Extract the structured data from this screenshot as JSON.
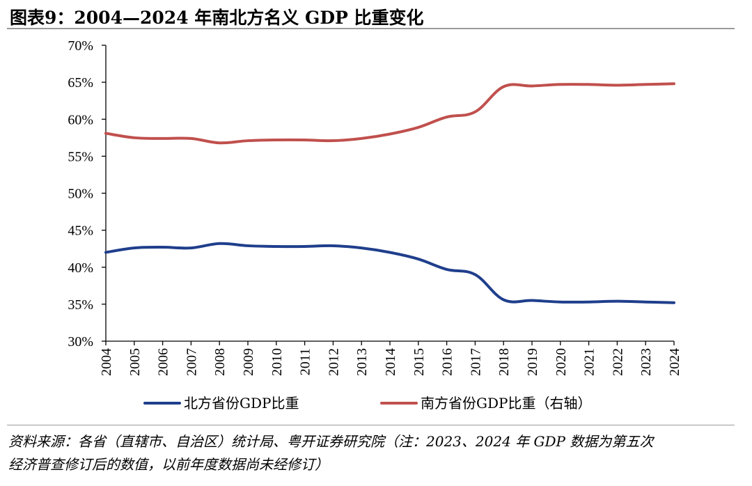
{
  "header": {
    "title": "图表9：2004—2024 年南北方名义 GDP 比重变化"
  },
  "footer": {
    "source_line1": "资料来源：各省（直辖市、自治区）统计局、粤开证券研究院（注：2023、2024 年 GDP 数据为第五次",
    "source_line2": "经济普查修订后的数值，以前年度数据尚未经修订）"
  },
  "chart_data": {
    "type": "line",
    "title": "2004—2024 年南北方名义 GDP 比重变化",
    "x": [
      "2004",
      "2005",
      "2006",
      "2007",
      "2008",
      "2009",
      "2010",
      "2011",
      "2012",
      "2013",
      "2014",
      "2015",
      "2016",
      "2017",
      "2018",
      "2019",
      "2020",
      "2021",
      "2022",
      "2023",
      "2024"
    ],
    "ylim": [
      30,
      70
    ],
    "yticks": [
      30,
      35,
      40,
      45,
      50,
      55,
      60,
      65,
      70
    ],
    "ytick_labels": [
      "30%",
      "35%",
      "40%",
      "45%",
      "50%",
      "55%",
      "60%",
      "65%",
      "70%"
    ],
    "series": [
      {
        "name": "北方省份GDP比重",
        "color": "#1f3e8c",
        "values": [
          42.0,
          42.6,
          42.7,
          42.6,
          43.2,
          42.9,
          42.8,
          42.8,
          42.9,
          42.6,
          42.0,
          41.1,
          39.7,
          39.0,
          35.6,
          35.5,
          35.3,
          35.3,
          35.4,
          35.3,
          35.2
        ]
      },
      {
        "name": "南方省份GDP比重（右轴）",
        "color": "#c0504d",
        "values": [
          58.1,
          57.5,
          57.4,
          57.4,
          56.8,
          57.1,
          57.2,
          57.2,
          57.1,
          57.4,
          58.0,
          58.9,
          60.3,
          61.0,
          64.4,
          64.5,
          64.7,
          64.7,
          64.6,
          64.7,
          64.8
        ]
      }
    ],
    "legend_position": "bottom-center"
  }
}
